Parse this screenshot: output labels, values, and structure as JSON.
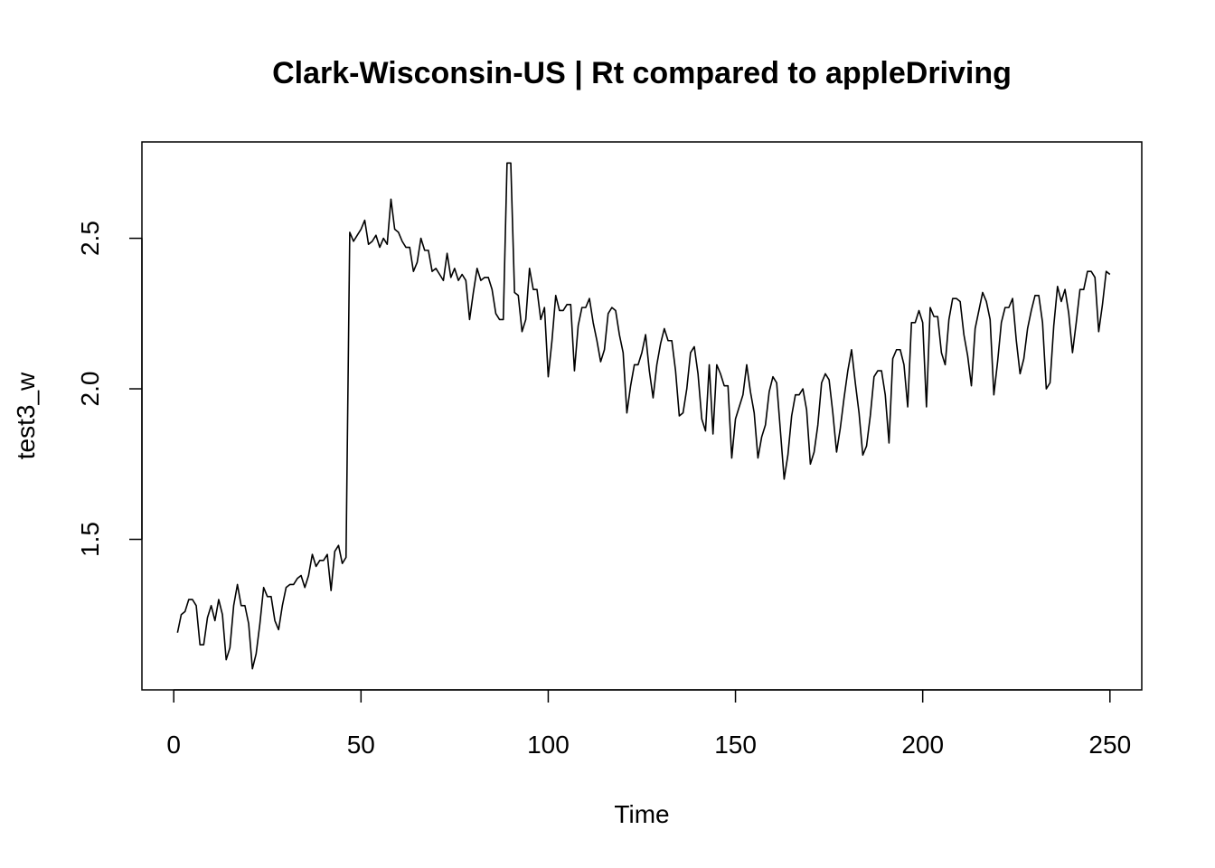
{
  "chart_data": {
    "type": "line",
    "title": "Clark-Wisconsin-US | Rt compared to appleDriving",
    "xlabel": "Time",
    "ylabel": "test3_w",
    "xlim": [
      -8.5,
      258.5
    ],
    "ylim": [
      1.0,
      2.82
    ],
    "x_ticks": [
      0,
      50,
      100,
      150,
      200,
      250
    ],
    "x_tick_labels": [
      "0",
      "50",
      "100",
      "150",
      "200",
      "250"
    ],
    "y_ticks": [
      1.5,
      2.0,
      2.5
    ],
    "y_tick_labels": [
      "1.5",
      "2.0",
      "2.5"
    ],
    "grid": false,
    "series": [
      {
        "x_start": 1,
        "values": [
          1.19,
          1.25,
          1.26,
          1.3,
          1.3,
          1.28,
          1.15,
          1.15,
          1.24,
          1.28,
          1.23,
          1.3,
          1.25,
          1.1,
          1.14,
          1.28,
          1.35,
          1.28,
          1.28,
          1.22,
          1.07,
          1.12,
          1.22,
          1.34,
          1.31,
          1.31,
          1.23,
          1.2,
          1.28,
          1.34,
          1.35,
          1.35,
          1.37,
          1.38,
          1.34,
          1.38,
          1.45,
          1.41,
          1.43,
          1.43,
          1.45,
          1.33,
          1.46,
          1.48,
          1.42,
          1.44,
          2.52,
          2.49,
          2.51,
          2.53,
          2.56,
          2.48,
          2.49,
          2.51,
          2.47,
          2.5,
          2.48,
          2.63,
          2.53,
          2.52,
          2.49,
          2.47,
          2.47,
          2.39,
          2.42,
          2.5,
          2.46,
          2.46,
          2.39,
          2.4,
          2.38,
          2.36,
          2.45,
          2.37,
          2.4,
          2.36,
          2.38,
          2.36,
          2.23,
          2.32,
          2.4,
          2.36,
          2.37,
          2.37,
          2.33,
          2.25,
          2.23,
          2.23,
          2.75,
          2.75,
          2.32,
          2.31,
          2.19,
          2.23,
          2.4,
          2.33,
          2.33,
          2.23,
          2.27,
          2.04,
          2.16,
          2.31,
          2.26,
          2.26,
          2.28,
          2.28,
          2.06,
          2.21,
          2.27,
          2.27,
          2.3,
          2.22,
          2.16,
          2.09,
          2.13,
          2.25,
          2.27,
          2.26,
          2.18,
          2.12,
          1.92,
          2.01,
          2.08,
          2.08,
          2.12,
          2.18,
          2.06,
          1.97,
          2.08,
          2.15,
          2.2,
          2.16,
          2.16,
          2.06,
          1.91,
          1.92,
          2.0,
          2.12,
          2.14,
          2.05,
          1.9,
          1.86,
          2.08,
          1.85,
          2.08,
          2.05,
          2.01,
          2.01,
          1.77,
          1.9,
          1.94,
          1.98,
          2.08,
          1.99,
          1.92,
          1.77,
          1.84,
          1.88,
          1.99,
          2.04,
          2.02,
          1.86,
          1.7,
          1.78,
          1.91,
          1.98,
          1.98,
          2.0,
          1.93,
          1.75,
          1.79,
          1.88,
          2.02,
          2.05,
          2.03,
          1.92,
          1.79,
          1.87,
          1.97,
          2.06,
          2.13,
          2.02,
          1.92,
          1.78,
          1.81,
          1.91,
          2.04,
          2.06,
          2.06,
          1.98,
          1.82,
          2.1,
          2.13,
          2.13,
          2.08,
          1.94,
          2.22,
          2.22,
          2.26,
          2.22,
          1.94,
          2.27,
          2.24,
          2.24,
          2.12,
          2.08,
          2.23,
          2.3,
          2.3,
          2.29,
          2.18,
          2.11,
          2.01,
          2.2,
          2.26,
          2.32,
          2.29,
          2.23,
          1.98,
          2.09,
          2.22,
          2.27,
          2.27,
          2.3,
          2.16,
          2.05,
          2.1,
          2.2,
          2.26,
          2.31,
          2.31,
          2.22,
          2.0,
          2.02,
          2.21,
          2.34,
          2.29,
          2.33,
          2.25,
          2.12,
          2.22,
          2.33,
          2.33,
          2.39,
          2.39,
          2.37,
          2.19,
          2.28,
          2.39,
          2.38
        ]
      }
    ]
  }
}
